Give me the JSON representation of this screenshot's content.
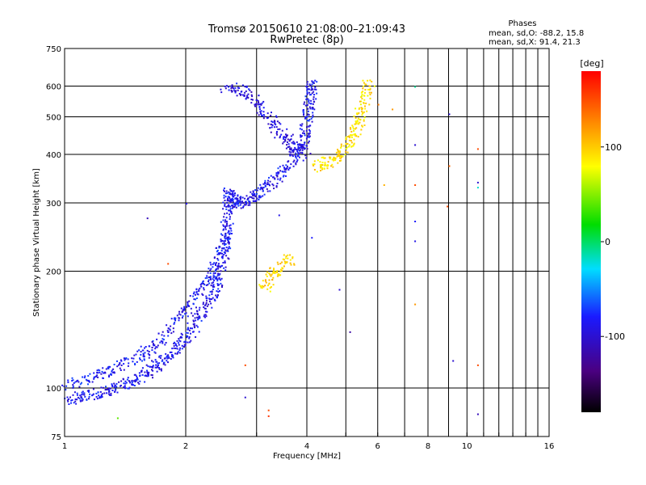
{
  "chart_data": {
    "type": "scatter",
    "title": "Tromsø 20150610 21:08:00–21:09:43",
    "subtitle": "RwPretec (8p)",
    "xlabel": "Frequency [MHz]",
    "ylabel": "Stationary phase Virtual Height [km]",
    "x_scale": "log",
    "y_scale": "log",
    "xlim": [
      1,
      16
    ],
    "ylim": [
      75,
      750
    ],
    "x_ticks": [
      "1",
      "2",
      "4",
      "6",
      "8",
      "10",
      "16"
    ],
    "x_ticks_values": [
      1,
      2,
      4,
      6,
      8,
      10,
      16
    ],
    "x_grid_values": [
      1,
      2,
      3,
      4,
      5,
      6,
      7,
      8,
      9,
      10,
      11,
      12,
      13,
      14,
      15,
      16
    ],
    "y_ticks": [
      "75",
      "100",
      "200",
      "300",
      "400",
      "500",
      "600",
      "750"
    ],
    "y_ticks_values": [
      75,
      100,
      200,
      300,
      400,
      500,
      600,
      750
    ],
    "grid": true,
    "legend": {
      "title": "Phases",
      "lines": [
        "mean, sd,O: -88.2, 15.8",
        "mean, sd,X:  91.4, 21.3"
      ],
      "placement": "top-right"
    },
    "colorbar": {
      "label": "[deg]",
      "range": [
        -180,
        180
      ],
      "ticks": [
        "100",
        "0",
        "-100"
      ],
      "ticks_values": [
        100,
        0,
        -100
      ],
      "colormap": "rainbow (black → purple → blue → cyan → green → yellow → red)"
    },
    "traces": [
      {
        "mode": "O",
        "phase": -88,
        "points": [
          [
            1.0,
            94
          ],
          [
            1.15,
            96
          ],
          [
            1.3,
            99
          ],
          [
            1.45,
            104
          ],
          [
            1.6,
            110
          ],
          [
            1.75,
            118
          ],
          [
            1.9,
            128
          ],
          [
            2.05,
            140
          ],
          [
            2.2,
            158
          ],
          [
            2.35,
            178
          ],
          [
            2.45,
            205
          ],
          [
            2.5,
            240
          ],
          [
            2.52,
            280
          ],
          [
            2.55,
            320
          ],
          [
            2.62,
            300
          ],
          [
            2.8,
            305
          ],
          [
            3.0,
            320
          ],
          [
            3.3,
            345
          ],
          [
            3.6,
            380
          ],
          [
            3.9,
            430
          ],
          [
            4.0,
            500
          ],
          [
            4.05,
            560
          ],
          [
            4.1,
            620
          ]
        ]
      },
      {
        "mode": "O",
        "phase": -85,
        "points": [
          [
            1.0,
            102
          ],
          [
            1.2,
            108
          ],
          [
            1.4,
            115
          ],
          [
            1.6,
            125
          ],
          [
            1.8,
            140
          ],
          [
            2.0,
            160
          ],
          [
            2.2,
            185
          ],
          [
            2.4,
            215
          ],
          [
            2.55,
            260
          ]
        ]
      },
      {
        "mode": "O",
        "phase": -95,
        "points": [
          [
            2.5,
            600
          ],
          [
            2.8,
            580
          ],
          [
            3.1,
            520
          ],
          [
            3.4,
            460
          ],
          [
            3.7,
            420
          ],
          [
            4.0,
            400
          ]
        ]
      },
      {
        "mode": "X",
        "phase": 95,
        "points": [
          [
            3.1,
            180
          ],
          [
            3.3,
            200
          ],
          [
            3.6,
            215
          ]
        ]
      },
      {
        "mode": "X",
        "phase": 92,
        "points": [
          [
            4.2,
            370
          ],
          [
            4.6,
            390
          ],
          [
            5.0,
            420
          ],
          [
            5.3,
            470
          ],
          [
            5.5,
            540
          ],
          [
            5.7,
            620
          ]
        ]
      }
    ],
    "scattered_points": [
      {
        "x": 1.6,
        "y": 275,
        "phase": -110
      },
      {
        "x": 1.35,
        "y": 84,
        "phase": 40
      },
      {
        "x": 1.8,
        "y": 210,
        "phase": 150
      },
      {
        "x": 2.0,
        "y": 300,
        "phase": -90
      },
      {
        "x": 2.8,
        "y": 115,
        "phase": 150
      },
      {
        "x": 2.8,
        "y": 95,
        "phase": -100
      },
      {
        "x": 3.2,
        "y": 88,
        "phase": 150
      },
      {
        "x": 3.2,
        "y": 85,
        "phase": 160
      },
      {
        "x": 3.4,
        "y": 280,
        "phase": -90
      },
      {
        "x": 4.1,
        "y": 245,
        "phase": -80
      },
      {
        "x": 4.8,
        "y": 180,
        "phase": -100
      },
      {
        "x": 5.1,
        "y": 140,
        "phase": -120
      },
      {
        "x": 6.2,
        "y": 335,
        "phase": 110
      },
      {
        "x": 6.5,
        "y": 525,
        "phase": 120
      },
      {
        "x": 7.4,
        "y": 425,
        "phase": -100
      },
      {
        "x": 7.4,
        "y": 335,
        "phase": 150
      },
      {
        "x": 7.4,
        "y": 270,
        "phase": -80
      },
      {
        "x": 7.4,
        "y": 240,
        "phase": -90
      },
      {
        "x": 7.4,
        "y": 165,
        "phase": 120
      },
      {
        "x": 7.4,
        "y": 600,
        "phase": -10
      },
      {
        "x": 9.0,
        "y": 510,
        "phase": -100
      },
      {
        "x": 9.0,
        "y": 375,
        "phase": 140
      },
      {
        "x": 8.9,
        "y": 295,
        "phase": 150
      },
      {
        "x": 9.2,
        "y": 118,
        "phase": -100
      },
      {
        "x": 10.6,
        "y": 415,
        "phase": 150
      },
      {
        "x": 10.6,
        "y": 340,
        "phase": -100
      },
      {
        "x": 10.6,
        "y": 330,
        "phase": -20
      },
      {
        "x": 10.6,
        "y": 115,
        "phase": 150
      },
      {
        "x": 10.6,
        "y": 86,
        "phase": -110
      },
      {
        "x": 3.3,
        "y": 200,
        "phase": 90
      },
      {
        "x": 3.1,
        "y": 190,
        "phase": 90
      },
      {
        "x": 3.7,
        "y": 210,
        "phase": 100
      },
      {
        "x": 6.0,
        "y": 540,
        "phase": 130
      }
    ]
  }
}
